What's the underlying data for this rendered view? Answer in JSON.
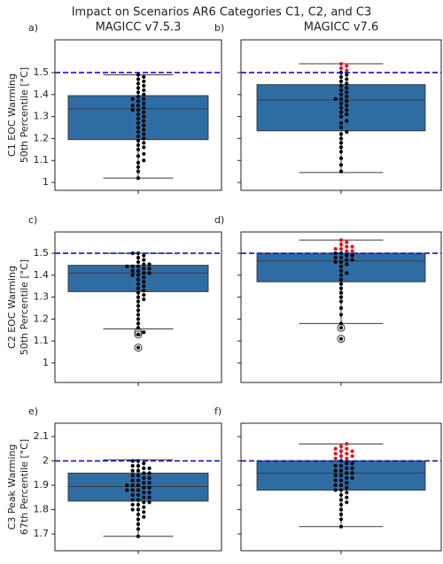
{
  "title": "Impact on Scenarios AR6 Categories C1, C2, and C3",
  "chart_data": [
    {
      "type": "box",
      "panel_label": "a)",
      "title": "MAGICC v7.5.3",
      "ylabel": [
        "C1 EOC Warming",
        "50th Percentile [°C]"
      ],
      "show_ytick_labels": true,
      "ylim": [
        0.964,
        1.649
      ],
      "yticks": [
        1.0,
        1.1,
        1.2,
        1.3,
        1.4,
        1.5
      ],
      "threshold": 1.5,
      "whislo": 1.02,
      "q1": 1.195,
      "med": 1.335,
      "q3": 1.395,
      "whishi": 1.49,
      "fliers": [],
      "points": [
        1.02,
        1.05,
        1.07,
        1.09,
        1.1,
        1.12,
        1.13,
        1.15,
        1.16,
        1.17,
        1.18,
        1.19,
        1.2,
        1.21,
        1.22,
        1.23,
        1.24,
        1.25,
        1.26,
        1.27,
        1.28,
        1.29,
        1.3,
        1.31,
        1.32,
        1.33,
        1.33,
        1.34,
        1.35,
        1.35,
        1.36,
        1.37,
        1.38,
        1.38,
        1.39,
        1.4,
        1.41,
        1.42,
        1.43,
        1.44,
        1.45,
        1.46,
        1.47,
        1.48,
        1.49
      ],
      "box_color": "#2e6ca4",
      "point_color": "#000000",
      "highlight_color": "#e8141c",
      "threshold_color": "#1010cc"
    },
    {
      "type": "box",
      "panel_label": "b)",
      "title": "MAGICC v7.6",
      "show_ytick_labels": false,
      "ylim": [
        0.964,
        1.649
      ],
      "yticks": [
        1.0,
        1.1,
        1.2,
        1.3,
        1.4,
        1.5
      ],
      "threshold": 1.5,
      "whislo": 1.045,
      "q1": 1.235,
      "med": 1.375,
      "q3": 1.445,
      "whishi": 1.54,
      "fliers": [],
      "points": [
        1.05,
        1.08,
        1.11,
        1.14,
        1.16,
        1.18,
        1.2,
        1.22,
        1.23,
        1.25,
        1.27,
        1.28,
        1.3,
        1.31,
        1.32,
        1.33,
        1.34,
        1.35,
        1.36,
        1.37,
        1.38,
        1.38,
        1.39,
        1.4,
        1.41,
        1.42,
        1.43,
        1.44,
        1.45,
        1.46,
        1.47,
        1.48,
        1.49,
        1.5,
        1.51,
        1.52,
        1.53,
        1.54
      ],
      "box_color": "#2e6ca4",
      "point_color": "#000000",
      "highlight_color": "#e8141c",
      "threshold_color": "#1010cc"
    },
    {
      "type": "box",
      "panel_label": "c)",
      "ylabel": [
        "C2 EOC Warming",
        "50th Percentile [°C]"
      ],
      "show_ytick_labels": true,
      "ylim": [
        0.911,
        1.597
      ],
      "yticks": [
        1.0,
        1.1,
        1.2,
        1.3,
        1.4,
        1.5
      ],
      "threshold": 1.5,
      "whislo": 1.155,
      "q1": 1.325,
      "med": 1.41,
      "q3": 1.445,
      "whishi": 1.5,
      "fliers": [
        1.14,
        1.13,
        1.07
      ],
      "points": [
        1.07,
        1.13,
        1.14,
        1.16,
        1.18,
        1.2,
        1.22,
        1.24,
        1.26,
        1.28,
        1.29,
        1.3,
        1.31,
        1.32,
        1.33,
        1.34,
        1.35,
        1.36,
        1.37,
        1.38,
        1.39,
        1.4,
        1.4,
        1.41,
        1.41,
        1.42,
        1.42,
        1.43,
        1.43,
        1.44,
        1.44,
        1.44,
        1.45,
        1.45,
        1.46,
        1.47,
        1.48,
        1.49,
        1.5,
        1.5
      ],
      "box_color": "#2e6ca4",
      "point_color": "#000000",
      "highlight_color": "#e8141c",
      "threshold_color": "#1010cc"
    },
    {
      "type": "box",
      "panel_label": "d)",
      "show_ytick_labels": false,
      "ylim": [
        0.911,
        1.597
      ],
      "yticks": [
        1.0,
        1.1,
        1.2,
        1.3,
        1.4,
        1.5
      ],
      "threshold": 1.5,
      "whislo": 1.18,
      "q1": 1.37,
      "med": 1.465,
      "q3": 1.5,
      "whishi": 1.56,
      "fliers": [
        1.16,
        1.11
      ],
      "points": [
        1.11,
        1.16,
        1.18,
        1.22,
        1.25,
        1.28,
        1.3,
        1.32,
        1.34,
        1.36,
        1.38,
        1.4,
        1.41,
        1.42,
        1.44,
        1.45,
        1.46,
        1.46,
        1.47,
        1.47,
        1.48,
        1.48,
        1.49,
        1.49,
        1.5,
        1.5,
        1.51,
        1.51,
        1.52,
        1.52,
        1.53,
        1.53,
        1.54,
        1.55,
        1.56
      ],
      "box_color": "#2e6ca4",
      "point_color": "#000000",
      "highlight_color": "#e8141c",
      "threshold_color": "#1010cc"
    },
    {
      "type": "box",
      "panel_label": "e)",
      "ylabel": [
        "C3 Peak Warming",
        "67th Percentile [°C]"
      ],
      "show_ytick_labels": true,
      "ylim": [
        1.631,
        2.155
      ],
      "yticks": [
        1.7,
        1.8,
        1.9,
        2.0,
        2.1
      ],
      "threshold": 2.0,
      "whislo": 1.69,
      "q1": 1.835,
      "med": 1.895,
      "q3": 1.95,
      "whishi": 2.005,
      "fliers": [],
      "points": [
        1.69,
        1.72,
        1.74,
        1.76,
        1.77,
        1.78,
        1.79,
        1.8,
        1.8,
        1.81,
        1.82,
        1.82,
        1.83,
        1.83,
        1.84,
        1.84,
        1.85,
        1.85,
        1.86,
        1.86,
        1.87,
        1.87,
        1.88,
        1.88,
        1.88,
        1.89,
        1.89,
        1.9,
        1.9,
        1.9,
        1.91,
        1.91,
        1.92,
        1.92,
        1.93,
        1.93,
        1.94,
        1.94,
        1.95,
        1.95,
        1.96,
        1.96,
        1.97,
        1.97,
        1.98,
        1.98,
        1.99,
        2.0,
        2.0
      ],
      "box_color": "#2e6ca4",
      "point_color": "#000000",
      "highlight_color": "#e8141c",
      "threshold_color": "#1010cc"
    },
    {
      "type": "box",
      "panel_label": "f)",
      "show_ytick_labels": false,
      "ylim": [
        1.631,
        2.155
      ],
      "yticks": [
        1.7,
        1.8,
        1.9,
        2.0,
        2.1
      ],
      "threshold": 2.0,
      "whislo": 1.73,
      "q1": 1.88,
      "med": 1.95,
      "q3": 2.0,
      "whishi": 2.07,
      "fliers": [],
      "points": [
        1.73,
        1.76,
        1.78,
        1.8,
        1.82,
        1.83,
        1.84,
        1.85,
        1.86,
        1.87,
        1.88,
        1.88,
        1.89,
        1.9,
        1.9,
        1.91,
        1.92,
        1.92,
        1.93,
        1.93,
        1.94,
        1.94,
        1.95,
        1.95,
        1.96,
        1.96,
        1.97,
        1.97,
        1.98,
        1.98,
        1.99,
        1.99,
        2.0,
        2.01,
        2.01,
        2.02,
        2.02,
        2.03,
        2.03,
        2.04,
        2.04,
        2.05,
        2.05,
        2.06,
        2.07
      ],
      "box_color": "#2e6ca4",
      "point_color": "#000000",
      "highlight_color": "#e8141c",
      "threshold_color": "#1010cc"
    }
  ]
}
